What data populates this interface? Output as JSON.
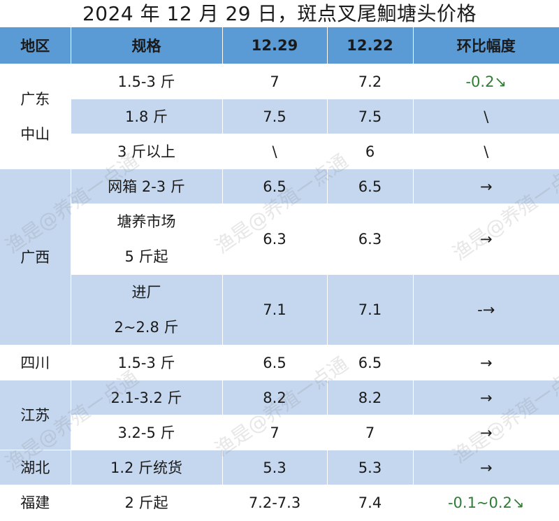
{
  "title": "2024 年 12 月 29 日，斑点叉尾鮰塘头价格",
  "headers": [
    "地区",
    "规格",
    "12.29",
    "12.22",
    "环比幅度"
  ],
  "regions": {
    "guangdong_zhongshan": [
      "广东",
      "中山"
    ],
    "guangxi": "广西",
    "sichuan": "四川",
    "jiangsu": "江苏",
    "hubei": "湖北",
    "fujian": "福建"
  },
  "rows": [
    {
      "spec": "1.5-3 斤",
      "d1229": "7",
      "d1222": "7.2",
      "change": "-0.2↘"
    },
    {
      "spec": "1.8 斤",
      "d1229": "7.5",
      "d1222": "7.5",
      "change": "\\"
    },
    {
      "spec": "3 斤以上",
      "d1229": "\\",
      "d1222": "6",
      "change": "\\"
    },
    {
      "spec": "网箱 2-3 斤",
      "d1229": "6.5",
      "d1222": "6.5",
      "change": "→"
    },
    {
      "spec": [
        "塘养市场",
        "5 斤起"
      ],
      "d1229": "6.3",
      "d1222": "6.3",
      "change": "→"
    },
    {
      "spec": [
        "进厂",
        "2~2.8 斤"
      ],
      "d1229": "7.1",
      "d1222": "7.1",
      "change": "-→"
    },
    {
      "spec": "1.5-3 斤",
      "d1229": "6.5",
      "d1222": "6.5",
      "change": "→"
    },
    {
      "spec": "2.1-3.2 斤",
      "d1229": "8.2",
      "d1222": "8.2",
      "change": "→"
    },
    {
      "spec": "3.2-5 斤",
      "d1229": "7",
      "d1222": "7",
      "change": "→"
    },
    {
      "spec": "1.2 斤统货",
      "d1229": "5.3",
      "d1222": "5.3",
      "change": "→"
    },
    {
      "spec": "2 斤起",
      "d1229": "7.2-7.3",
      "d1222": "7.4",
      "change": "-0.1~0.2↘"
    }
  ],
  "watermark": "渔是@养殖一点通",
  "colors": {
    "header": "#5b9bd5",
    "band": "#c5d7ee",
    "down": "#2e7d32"
  }
}
